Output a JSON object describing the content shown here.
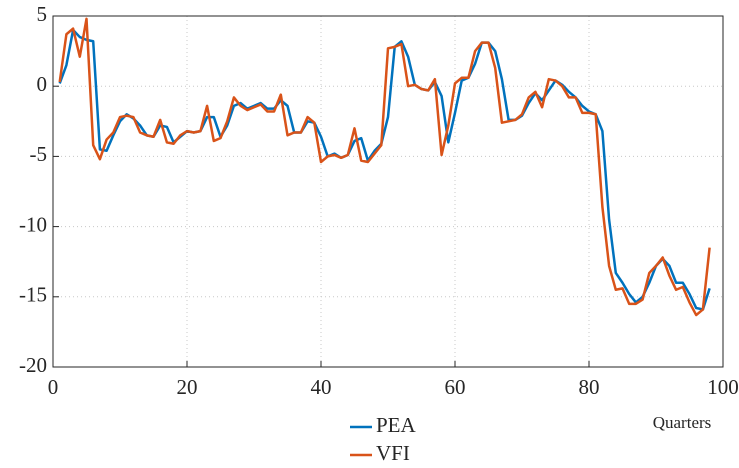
{
  "chart_data": {
    "type": "line",
    "x": [
      1,
      2,
      3,
      4,
      5,
      6,
      7,
      8,
      9,
      10,
      11,
      12,
      13,
      14,
      15,
      16,
      17,
      18,
      19,
      20,
      21,
      22,
      23,
      24,
      25,
      26,
      27,
      28,
      29,
      30,
      31,
      32,
      33,
      34,
      35,
      36,
      37,
      38,
      39,
      40,
      41,
      42,
      43,
      44,
      45,
      46,
      47,
      48,
      49,
      50,
      51,
      52,
      53,
      54,
      55,
      56,
      57,
      58,
      59,
      60,
      61,
      62,
      63,
      64,
      65,
      66,
      67,
      68,
      69,
      70,
      71,
      72,
      73,
      74,
      75,
      76,
      77,
      78,
      79,
      80,
      81,
      82,
      83,
      84,
      85,
      86,
      87,
      88,
      89,
      90,
      91,
      92,
      93,
      94,
      95,
      96,
      97,
      98
    ],
    "series": [
      {
        "name": "PEA",
        "color": "#0072bd",
        "values": [
          0.2,
          1.5,
          4.0,
          3.5,
          3.3,
          3.2,
          -4.5,
          -4.6,
          -3.5,
          -2.5,
          -2.0,
          -2.3,
          -2.8,
          -3.5,
          -3.6,
          -2.8,
          -2.9,
          -4.0,
          -3.6,
          -3.2,
          -3.3,
          -3.2,
          -2.2,
          -2.2,
          -3.6,
          -2.8,
          -1.4,
          -1.2,
          -1.6,
          -1.4,
          -1.2,
          -1.6,
          -1.6,
          -1.0,
          -1.4,
          -3.3,
          -3.3,
          -2.5,
          -2.6,
          -3.6,
          -5.0,
          -4.8,
          -5.1,
          -4.9,
          -3.9,
          -3.7,
          -5.3,
          -4.6,
          -4.1,
          -2.2,
          2.8,
          3.2,
          2.1,
          0.1,
          -0.2,
          -0.3,
          0.3,
          -0.7,
          -4.0,
          -1.9,
          0.4,
          0.6,
          1.6,
          3.1,
          3.1,
          2.5,
          0.5,
          -2.4,
          -2.4,
          -2.1,
          -1.2,
          -0.5,
          -1.0,
          -0.3,
          0.4,
          0.1,
          -0.4,
          -0.8,
          -1.4,
          -1.8,
          -2.0,
          -3.2,
          -9.5,
          -13.3,
          -14.0,
          -14.8,
          -15.4,
          -15.0,
          -14.0,
          -12.8,
          -12.3,
          -12.8,
          -14.0,
          -14.0,
          -14.8,
          -15.8,
          -15.9,
          -14.4
        ]
      },
      {
        "name": "VFI",
        "color": "#d95319",
        "values": [
          0.3,
          3.7,
          4.1,
          2.1,
          4.8,
          -4.2,
          -5.2,
          -3.8,
          -3.3,
          -2.2,
          -2.1,
          -2.2,
          -3.3,
          -3.5,
          -3.6,
          -2.4,
          -4.0,
          -4.1,
          -3.5,
          -3.2,
          -3.3,
          -3.2,
          -1.4,
          -3.9,
          -3.7,
          -2.5,
          -0.8,
          -1.4,
          -1.7,
          -1.5,
          -1.3,
          -1.8,
          -1.8,
          -0.6,
          -3.5,
          -3.3,
          -3.3,
          -2.2,
          -2.6,
          -5.4,
          -5.0,
          -4.9,
          -5.1,
          -4.9,
          -3.0,
          -5.3,
          -5.4,
          -4.8,
          -4.2,
          2.7,
          2.8,
          3.0,
          0.0,
          0.1,
          -0.2,
          -0.3,
          0.5,
          -4.9,
          -2.8,
          0.2,
          0.6,
          0.6,
          2.5,
          3.1,
          3.1,
          1.3,
          -2.6,
          -2.5,
          -2.4,
          -2.0,
          -0.8,
          -0.4,
          -1.5,
          0.5,
          0.4,
          0.0,
          -0.8,
          -0.8,
          -1.9,
          -1.9,
          -2.0,
          -8.6,
          -12.8,
          -14.5,
          -14.4,
          -15.5,
          -15.5,
          -15.2,
          -13.3,
          -12.8,
          -12.2,
          -13.5,
          -14.5,
          -14.3,
          -15.4,
          -16.3,
          -15.9,
          -11.5
        ]
      }
    ],
    "x_label": "Quarters",
    "xlim": [
      0,
      100
    ],
    "xticks": [
      0,
      20,
      40,
      60,
      80,
      100
    ],
    "ylim": [
      -20,
      5
    ],
    "yticks": [
      -20,
      -15,
      -10,
      -5,
      0,
      5
    ],
    "grid": true,
    "legend": "bottom"
  }
}
